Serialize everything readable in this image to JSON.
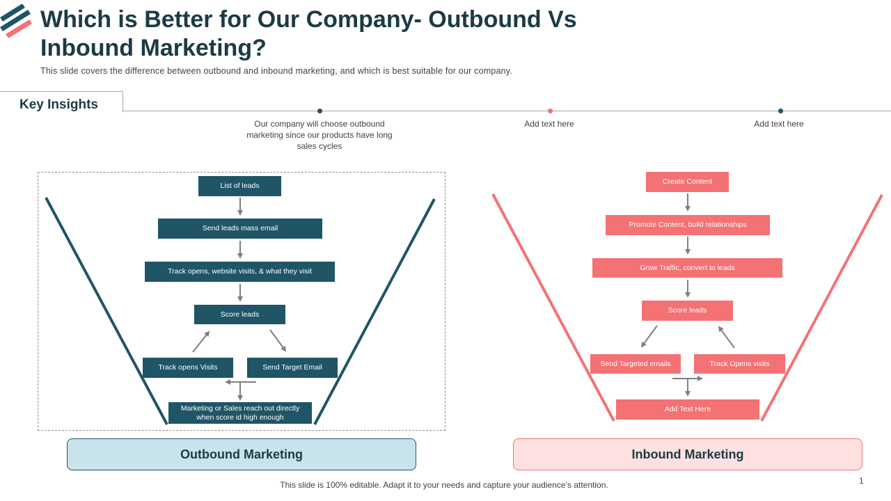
{
  "header": {
    "title": "Which is Better for Our Company- Outbound Vs Inbound Marketing?",
    "subtitle": "This slide covers the difference between outbound and inbound marketing, and which is best suitable for our company."
  },
  "key_insights": {
    "label": "Key Insights",
    "items": [
      {
        "text": "Our company will choose outbound marketing since our products have long sales cycles",
        "dot_color": "#1f5566"
      },
      {
        "text": "Add text here",
        "dot_color": "#f47174"
      },
      {
        "text": "Add text here",
        "dot_color": "#1f5566"
      }
    ]
  },
  "outbound": {
    "label": "Outbound Marketing",
    "steps": {
      "list_leads": "List of leads",
      "mass_email": "Send leads mass email",
      "track_opens": "Track opens, website visits, & what they visit",
      "score_leads": "Score leads",
      "track_visits": "Track opens Visits",
      "target_email": "Send Target Email",
      "reach_out": "Marketing or Sales reach out directly when score id high enough"
    }
  },
  "inbound": {
    "label": "Inbound Marketing",
    "steps": {
      "create_content": "Create Content",
      "promote": "Promote Content, build relationships",
      "grow_traffic": "Grow Traffic, convert to leads",
      "score_leads": "Score leads",
      "targeted_emails": "Send Targeted emails",
      "track_visits": "Track Opens visits",
      "add_text": "Add Text Here"
    }
  },
  "colors": {
    "outbound": "#1f5566",
    "inbound": "#f47174",
    "arrow": "#7f7f7f"
  },
  "footer": {
    "note": "This slide is 100% editable. Adapt it to your needs and capture your audience’s attention.",
    "page_number": "1"
  }
}
